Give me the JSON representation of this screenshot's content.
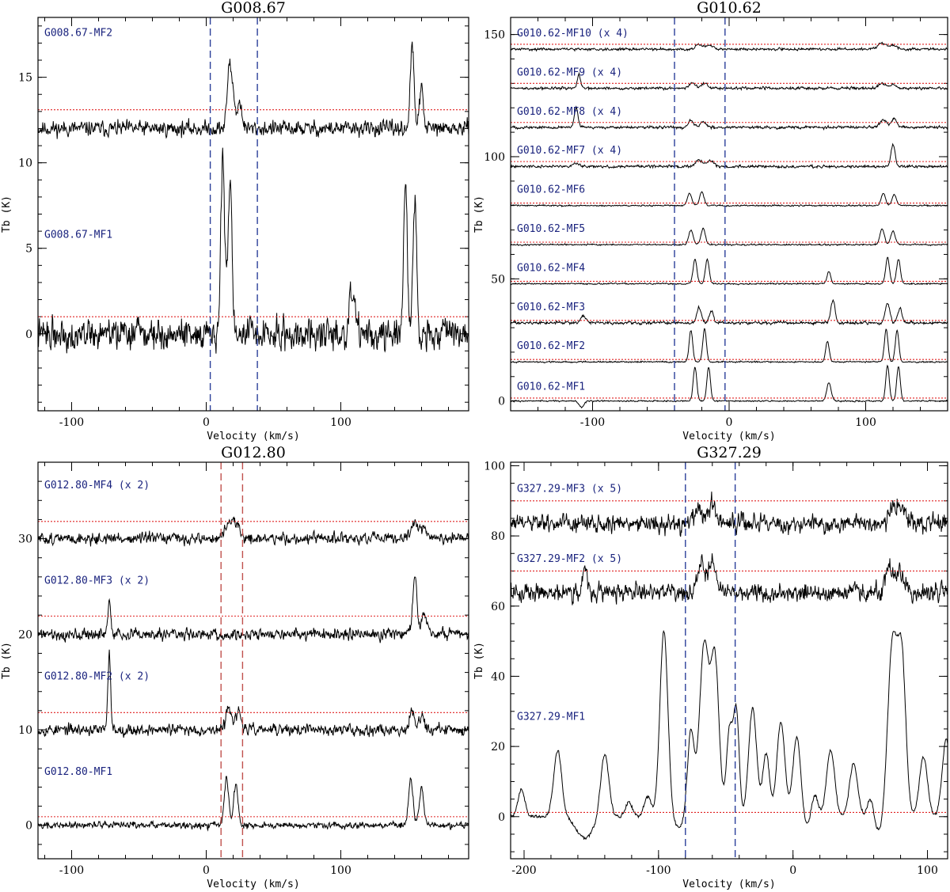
{
  "chart_data": [
    {
      "type": "line",
      "title": "G008.67",
      "xlabel": "Velocity (km/s)",
      "ylabel": "Tb (K)",
      "xlim": [
        -125,
        195
      ],
      "ylim": [
        -4.5,
        18.5
      ],
      "xticks": [
        -100,
        0,
        100
      ],
      "yticks": [
        0,
        5,
        10,
        15
      ],
      "velocity_range_markers": [
        3,
        38
      ],
      "marker_color": "#2b3f9a",
      "series": [
        {
          "name": "G008.67-MF2",
          "label_y": 17.6,
          "offset": 12,
          "rms": 0.45,
          "threshold": 13.1,
          "seed": 11,
          "lines": [
            [
              17,
              3.5,
              1.5
            ],
            [
              20,
              2.0,
              1.5
            ],
            [
              25,
              1.6,
              1.5
            ],
            [
              153,
              4.8,
              1.4
            ],
            [
              160,
              2.4,
              1.4
            ]
          ]
        },
        {
          "name": "G008.67-MF1",
          "label_y": 5.8,
          "offset": 0,
          "rms": 0.9,
          "threshold": 1.0,
          "seed": 22,
          "lines": [
            [
              12,
              9.3,
              1.3
            ],
            [
              15,
              3.0,
              2.0
            ],
            [
              18,
              8.0,
              1.3
            ],
            [
              107,
              2.2,
              1.3
            ],
            [
              110,
              1.8,
              1.3
            ],
            [
              148,
              8.5,
              1.4
            ],
            [
              155,
              8.0,
              1.4
            ]
          ]
        }
      ]
    },
    {
      "type": "line",
      "title": "G010.62",
      "xlabel": "Velocity (km/s)",
      "ylabel": "Tb (K)",
      "xlim": [
        -160,
        160
      ],
      "ylim": [
        -4,
        157
      ],
      "xticks": [
        -100,
        0,
        100
      ],
      "yticks": [
        0,
        50,
        100,
        150
      ],
      "velocity_range_markers": [
        -40,
        -3
      ],
      "marker_color": "#2b3f9a",
      "series": [
        {
          "name": "G010.62-MF10 (x 4)",
          "label_y": 150.5,
          "offset": 144,
          "rms": 0.5,
          "threshold": 146,
          "seed": 31,
          "lines": [
            [
              -22,
              1.8,
              2.5
            ],
            [
              -14,
              1.5,
              2.5
            ],
            [
              112,
              2.5,
              3.0
            ],
            [
              120,
              1.5,
              2.5
            ]
          ]
        },
        {
          "name": "G010.62-MF9 (x 4)",
          "label_y": 134.5,
          "offset": 128,
          "rms": 0.55,
          "threshold": 130,
          "seed": 32,
          "lines": [
            [
              -110,
              5.5,
              1.2
            ],
            [
              -27,
              2.5,
              2.0
            ],
            [
              -18,
              2.0,
              2.0
            ],
            [
              112,
              2.0,
              2.5
            ],
            [
              120,
              1.5,
              2.0
            ]
          ]
        },
        {
          "name": "G010.62-MF8 (x 4)",
          "label_y": 118.5,
          "offset": 112,
          "rms": 0.55,
          "threshold": 114,
          "seed": 33,
          "lines": [
            [
              -112,
              8.0,
              1.3
            ],
            [
              -28,
              3.0,
              2.0
            ],
            [
              -19,
              2.5,
              2.0
            ],
            [
              113,
              3.0,
              2.5
            ],
            [
              121,
              3.5,
              2.0
            ]
          ]
        },
        {
          "name": "G010.62-MF7 (x 4)",
          "label_y": 102.5,
          "offset": 96,
          "rms": 0.55,
          "threshold": 98,
          "seed": 34,
          "lines": [
            [
              -112,
              1.5,
              2.0
            ],
            [
              -22,
              2.5,
              2.5
            ],
            [
              -14,
              2.5,
              2.5
            ],
            [
              120,
              9.0,
              1.5
            ]
          ]
        },
        {
          "name": "G010.62-MF6",
          "label_y": 86.5,
          "offset": 80,
          "rms": 0.3,
          "threshold": 81,
          "seed": 35,
          "lines": [
            [
              -29,
              5.0,
              1.6
            ],
            [
              -20,
              5.5,
              1.6
            ],
            [
              113,
              5.0,
              1.6
            ],
            [
              121,
              4.5,
              1.6
            ]
          ]
        },
        {
          "name": "G010.62-MF5",
          "label_y": 70.5,
          "offset": 64,
          "rms": 0.3,
          "threshold": 65,
          "seed": 36,
          "lines": [
            [
              -28,
              6.0,
              1.6
            ],
            [
              -19,
              6.5,
              1.6
            ],
            [
              112,
              6.5,
              1.6
            ],
            [
              120,
              5.5,
              1.6
            ]
          ]
        },
        {
          "name": "G010.62-MF4",
          "label_y": 54.5,
          "offset": 48,
          "rms": 0.3,
          "threshold": 49,
          "seed": 37,
          "lines": [
            [
              -25,
              10.0,
              1.4
            ],
            [
              -16,
              10.0,
              1.4
            ],
            [
              73,
              5.0,
              1.4
            ],
            [
              116,
              10.5,
              1.4
            ],
            [
              124,
              10.0,
              1.4
            ]
          ]
        },
        {
          "name": "G010.62-MF3",
          "label_y": 38.5,
          "offset": 32,
          "rms": 0.6,
          "threshold": 33,
          "seed": 38,
          "lines": [
            [
              -107,
              3.0,
              1.5
            ],
            [
              -22,
              6.5,
              1.6
            ],
            [
              -13,
              5.0,
              1.6
            ],
            [
              76,
              9.5,
              1.5
            ],
            [
              116,
              8.0,
              1.6
            ],
            [
              125,
              6.0,
              1.6
            ]
          ]
        },
        {
          "name": "G010.62-MF2",
          "label_y": 22.5,
          "offset": 16,
          "rms": 0.3,
          "threshold": 17,
          "seed": 39,
          "lines": [
            [
              -28,
              13.0,
              1.3
            ],
            [
              -18,
              13.5,
              1.3
            ],
            [
              72,
              8.5,
              1.3
            ],
            [
              115,
              13.5,
              1.3
            ],
            [
              123,
              13.0,
              1.3
            ]
          ]
        },
        {
          "name": "G010.62-MF1",
          "label_y": 5.8,
          "offset": 0,
          "rms": 0.3,
          "threshold": 1.2,
          "seed": 40,
          "lines": [
            [
              -25,
              14.0,
              1.3
            ],
            [
              -15,
              14.0,
              1.3
            ],
            [
              73,
              7.5,
              1.6
            ],
            [
              116,
              14.5,
              1.3
            ],
            [
              124,
              14.0,
              1.3
            ],
            [
              -108,
              -2.5,
              1.8
            ]
          ]
        }
      ]
    },
    {
      "type": "line",
      "title": "G012.80",
      "xlabel": "Velocity (km/s)",
      "ylabel": "Tb (K)",
      "xlim": [
        -125,
        195
      ],
      "ylim": [
        -3.5,
        38
      ],
      "xticks": [
        -100,
        0,
        100
      ],
      "yticks": [
        0,
        10,
        20,
        30
      ],
      "velocity_range_markers": [
        11,
        27
      ],
      "marker_color": "#c0504d",
      "series": [
        {
          "name": "G012.80-MF4 (x 2)",
          "label_y": 35.6,
          "offset": 30,
          "rms": 0.6,
          "threshold": 31.8,
          "seed": 51,
          "lines": [
            [
              17,
              1.5,
              3.0
            ],
            [
              22,
              1.2,
              3.0
            ],
            [
              155,
              1.8,
              2.5
            ],
            [
              162,
              1.2,
              2.5
            ]
          ]
        },
        {
          "name": "G012.80-MF3 (x 2)",
          "label_y": 25.6,
          "offset": 20,
          "rms": 0.6,
          "threshold": 21.9,
          "seed": 52,
          "lines": [
            [
              -72,
              3.5,
              1.0
            ],
            [
              155,
              6.0,
              1.5
            ],
            [
              162,
              2.0,
              2.0
            ]
          ]
        },
        {
          "name": "G012.80-MF2 (x 2)",
          "label_y": 15.6,
          "offset": 10,
          "rms": 0.6,
          "threshold": 11.8,
          "seed": 53,
          "lines": [
            [
              -72,
              8.0,
              1.0
            ],
            [
              17,
              2.5,
              2.0
            ],
            [
              24,
              1.8,
              2.0
            ],
            [
              153,
              2.0,
              2.0
            ],
            [
              160,
              1.5,
              2.0
            ]
          ]
        },
        {
          "name": "G012.80-MF1",
          "label_y": 5.6,
          "offset": 0,
          "rms": 0.35,
          "threshold": 0.9,
          "seed": 54,
          "lines": [
            [
              15,
              5.0,
              1.6
            ],
            [
              22,
              4.2,
              1.6
            ],
            [
              152,
              5.0,
              1.6
            ],
            [
              160,
              4.0,
              1.6
            ]
          ]
        }
      ]
    },
    {
      "type": "line",
      "title": "G327.29",
      "xlabel": "Velocity (km/s)",
      "ylabel": "Tb (K)",
      "xlim": [
        -210,
        115
      ],
      "ylim": [
        -12,
        101
      ],
      "xticks": [
        -200,
        -100,
        0,
        100
      ],
      "yticks": [
        0,
        20,
        40,
        60,
        80,
        100
      ],
      "velocity_range_markers": [
        -80,
        -43
      ],
      "marker_color": "#2b3f9a",
      "series": [
        {
          "name": "G327.29-MF3 (x 5)",
          "label_y": 93.5,
          "offset": 83.5,
          "rms": 2.6,
          "threshold": 90,
          "seed": 61,
          "lines": [
            [
              -70,
              4.0,
              3.0
            ],
            [
              -60,
              6.0,
              2.5
            ],
            [
              75,
              5.0,
              3.0
            ],
            [
              82,
              3.5,
              3.0
            ]
          ]
        },
        {
          "name": "G327.29-MF2 (x 5)",
          "label_y": 73.5,
          "offset": 64,
          "rms": 2.6,
          "threshold": 70,
          "seed": 62,
          "lines": [
            [
              -155,
              6.0,
              1.5
            ],
            [
              -68,
              8.0,
              3.0
            ],
            [
              -60,
              9.0,
              2.5
            ],
            [
              72,
              7.0,
              3.0
            ],
            [
              80,
              6.0,
              3.0
            ]
          ]
        },
        {
          "name": "G327.29-MF1",
          "label_y": 28.5,
          "offset": 0,
          "rms": 0.5,
          "threshold": 1.2,
          "seed": 63,
          "lines": [
            [
              -202,
              8,
              2.5
            ],
            [
              -175,
              19,
              3.0
            ],
            [
              -140,
              18,
              3.0
            ],
            [
              -122,
              4,
              2.5
            ],
            [
              -108,
              6,
              2.5
            ],
            [
              -96,
              53,
              3.0
            ],
            [
              -76,
              25,
              2.5
            ],
            [
              -66,
              49,
              3.5
            ],
            [
              -58,
              44,
              3.0
            ],
            [
              -47,
              25,
              2.5
            ],
            [
              -42,
              28,
              2.0
            ],
            [
              -30,
              31,
              3.0
            ],
            [
              -20,
              18,
              2.5
            ],
            [
              -9,
              27,
              3.0
            ],
            [
              3,
              25,
              3.0
            ],
            [
              16,
              7,
              2.5
            ],
            [
              28,
              19,
              3.0
            ],
            [
              45,
              15,
              3.0
            ],
            [
              58,
              7,
              2.5
            ],
            [
              74,
              49,
              3.5
            ],
            [
              81,
              43,
              3.0
            ],
            [
              97,
              17,
              3.0
            ],
            [
              114,
              22,
              3.0
            ],
            [
              -155,
              -6,
              6.0
            ],
            [
              -85,
              -3,
              5.0
            ],
            [
              8,
              -4,
              5.0
            ],
            [
              63,
              -5,
              4.0
            ]
          ]
        }
      ]
    }
  ]
}
